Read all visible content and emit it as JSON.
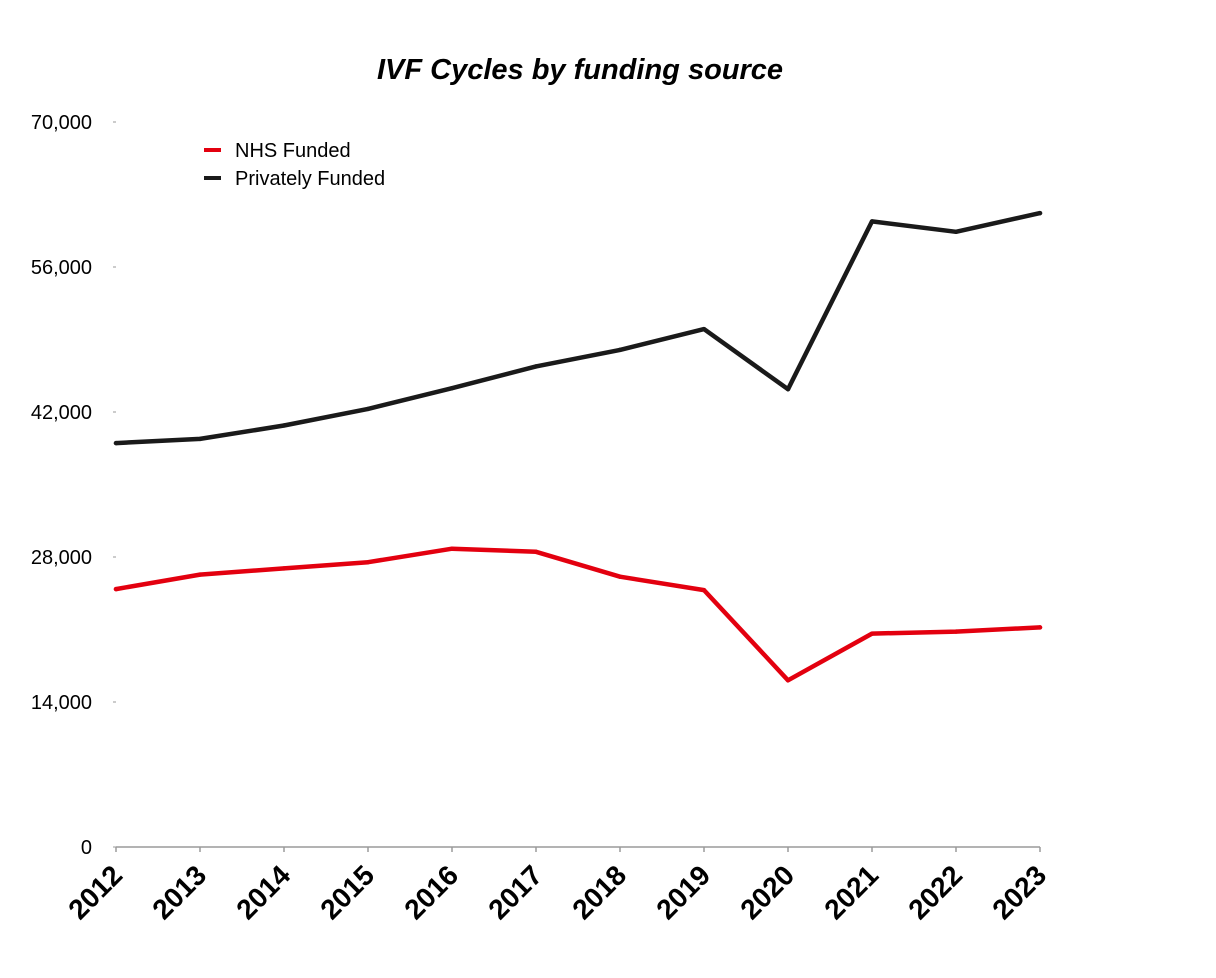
{
  "chart_data": {
    "type": "line",
    "title": "IVF Cycles by funding source",
    "xlabel": "",
    "ylabel": "",
    "categories": [
      "2012",
      "2013",
      "2014",
      "2015",
      "2016",
      "2017",
      "2018",
      "2019",
      "2020",
      "2021",
      "2022",
      "2023"
    ],
    "ylim": [
      0,
      70000
    ],
    "yticks": [
      0,
      14000,
      28000,
      42000,
      56000,
      70000
    ],
    "ytick_labels": [
      "0",
      "14,000",
      "28,000",
      "42,000",
      "56,000",
      "70,000"
    ],
    "grid": false,
    "legend_position": "top-left",
    "series": [
      {
        "name": "NHS Funded",
        "color": "#e3000f",
        "values": [
          24900,
          26300,
          26900,
          27500,
          28800,
          28500,
          26100,
          24800,
          16100,
          20600,
          20800,
          21200
        ]
      },
      {
        "name": "Privately Funded",
        "color": "#1a1a1a",
        "values": [
          39000,
          39400,
          40700,
          42300,
          44300,
          46400,
          48000,
          50000,
          44200,
          60400,
          59400,
          61200
        ]
      }
    ]
  }
}
